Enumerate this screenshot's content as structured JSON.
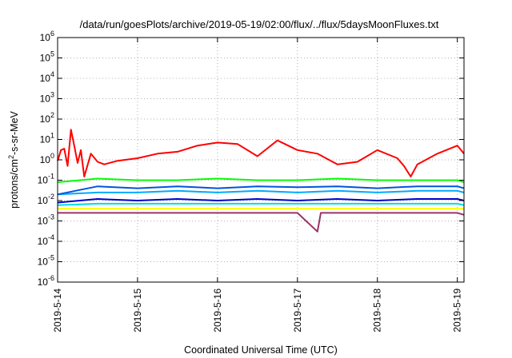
{
  "chart_data": {
    "type": "line",
    "title": "/data/run/goesPlots/archive/2019-05-19/02:00/flux/../flux/5daysMoonFluxes.txt",
    "xlabel": "Coordinated Universal Time (UTC)",
    "ylabel": {
      "prefix": "protons/cm",
      "sup": "2",
      "suffix": "-s-sr-MeV"
    },
    "yscale": "log",
    "ylim": [
      1e-06,
      1000000.0
    ],
    "y_ticks": [
      {
        "value": 1e-06,
        "base": "10",
        "exp": "-6"
      },
      {
        "value": 1e-05,
        "base": "10",
        "exp": "-5"
      },
      {
        "value": 0.0001,
        "base": "10",
        "exp": "-4"
      },
      {
        "value": 0.001,
        "base": "10",
        "exp": "-3"
      },
      {
        "value": 0.01,
        "base": "10",
        "exp": "-2"
      },
      {
        "value": 0.1,
        "base": "10",
        "exp": "-1"
      },
      {
        "value": 1,
        "base": "10",
        "exp": "0"
      },
      {
        "value": 10,
        "base": "10",
        "exp": "1"
      },
      {
        "value": 100,
        "base": "10",
        "exp": "2"
      },
      {
        "value": 1000,
        "base": "10",
        "exp": "3"
      },
      {
        "value": 10000,
        "base": "10",
        "exp": "4"
      },
      {
        "value": 100000,
        "base": "10",
        "exp": "5"
      },
      {
        "value": 1000000,
        "base": "10",
        "exp": "6"
      }
    ],
    "xlim": [
      "2019-05-14 00:00",
      "2019-05-19 02:00"
    ],
    "x_ticks": [
      {
        "value": "2019-05-14 00:00",
        "label": "2019-5-14"
      },
      {
        "value": "2019-05-15 00:00",
        "label": "2019-5-15"
      },
      {
        "value": "2019-05-16 00:00",
        "label": "2019-5-16"
      },
      {
        "value": "2019-05-17 00:00",
        "label": "2019-5-17"
      },
      {
        "value": "2019-05-18 00:00",
        "label": "2019-5-18"
      },
      {
        "value": "2019-05-19 00:00",
        "label": "2019-5-19"
      }
    ],
    "grid": true,
    "series": [
      {
        "color": "#ff0000",
        "points": [
          [
            "2019-05-14 00:00",
            0.9
          ],
          [
            "2019-05-14 01:00",
            3.0
          ],
          [
            "2019-05-14 02:00",
            3.5
          ],
          [
            "2019-05-14 03:00",
            0.5
          ],
          [
            "2019-05-14 04:00",
            30
          ],
          [
            "2019-05-14 05:00",
            5
          ],
          [
            "2019-05-14 06:00",
            0.7
          ],
          [
            "2019-05-14 07:00",
            3
          ],
          [
            "2019-05-14 08:00",
            0.15
          ],
          [
            "2019-05-14 10:00",
            2
          ],
          [
            "2019-05-14 12:00",
            0.8
          ],
          [
            "2019-05-14 14:00",
            0.6
          ],
          [
            "2019-05-14 18:00",
            0.9
          ],
          [
            "2019-05-15 00:00",
            1.2
          ],
          [
            "2019-05-15 06:00",
            2
          ],
          [
            "2019-05-15 12:00",
            2.5
          ],
          [
            "2019-05-15 18:00",
            5
          ],
          [
            "2019-05-16 00:00",
            7
          ],
          [
            "2019-05-16 06:00",
            6
          ],
          [
            "2019-05-16 12:00",
            1.5
          ],
          [
            "2019-05-16 18:00",
            9
          ],
          [
            "2019-05-17 00:00",
            3
          ],
          [
            "2019-05-17 06:00",
            2
          ],
          [
            "2019-05-17 12:00",
            0.6
          ],
          [
            "2019-05-17 18:00",
            0.8
          ],
          [
            "2019-05-18 00:00",
            3
          ],
          [
            "2019-05-18 06:00",
            1.2
          ],
          [
            "2019-05-18 08:00",
            0.5
          ],
          [
            "2019-05-18 10:00",
            0.15
          ],
          [
            "2019-05-18 12:00",
            0.6
          ],
          [
            "2019-05-18 18:00",
            2
          ],
          [
            "2019-05-19 00:00",
            5
          ],
          [
            "2019-05-19 02:00",
            2
          ]
        ]
      },
      {
        "color": "#00ff00",
        "points": [
          [
            "2019-05-14 00:00",
            0.08
          ],
          [
            "2019-05-14 12:00",
            0.12
          ],
          [
            "2019-05-15 00:00",
            0.1
          ],
          [
            "2019-05-15 12:00",
            0.1
          ],
          [
            "2019-05-16 00:00",
            0.12
          ],
          [
            "2019-05-16 12:00",
            0.1
          ],
          [
            "2019-05-17 00:00",
            0.1
          ],
          [
            "2019-05-17 12:00",
            0.12
          ],
          [
            "2019-05-18 00:00",
            0.1
          ],
          [
            "2019-05-18 12:00",
            0.1
          ],
          [
            "2019-05-19 00:00",
            0.1
          ],
          [
            "2019-05-19 02:00",
            0.08
          ]
        ]
      },
      {
        "color": "#0055dd",
        "points": [
          [
            "2019-05-14 00:00",
            0.02
          ],
          [
            "2019-05-14 12:00",
            0.05
          ],
          [
            "2019-05-15 00:00",
            0.04
          ],
          [
            "2019-05-15 12:00",
            0.05
          ],
          [
            "2019-05-16 00:00",
            0.04
          ],
          [
            "2019-05-16 12:00",
            0.05
          ],
          [
            "2019-05-17 00:00",
            0.045
          ],
          [
            "2019-05-17 12:00",
            0.05
          ],
          [
            "2019-05-18 00:00",
            0.04
          ],
          [
            "2019-05-18 12:00",
            0.05
          ],
          [
            "2019-05-19 00:00",
            0.05
          ],
          [
            "2019-05-19 02:00",
            0.04
          ]
        ]
      },
      {
        "color": "#00aaff",
        "points": [
          [
            "2019-05-14 00:00",
            0.02
          ],
          [
            "2019-05-14 12:00",
            0.025
          ],
          [
            "2019-05-15 00:00",
            0.025
          ],
          [
            "2019-05-15 12:00",
            0.03
          ],
          [
            "2019-05-16 00:00",
            0.025
          ],
          [
            "2019-05-16 12:00",
            0.03
          ],
          [
            "2019-05-17 00:00",
            0.025
          ],
          [
            "2019-05-17 12:00",
            0.03
          ],
          [
            "2019-05-18 00:00",
            0.025
          ],
          [
            "2019-05-18 12:00",
            0.03
          ],
          [
            "2019-05-19 00:00",
            0.03
          ],
          [
            "2019-05-19 02:00",
            0.025
          ]
        ]
      },
      {
        "color": "#0000cc",
        "points": [
          [
            "2019-05-14 00:00",
            0.008
          ],
          [
            "2019-05-14 12:00",
            0.012
          ],
          [
            "2019-05-15 00:00",
            0.01
          ],
          [
            "2019-05-15 12:00",
            0.012
          ],
          [
            "2019-05-16 00:00",
            0.01
          ],
          [
            "2019-05-16 12:00",
            0.012
          ],
          [
            "2019-05-17 00:00",
            0.01
          ],
          [
            "2019-05-17 12:00",
            0.012
          ],
          [
            "2019-05-18 00:00",
            0.01
          ],
          [
            "2019-05-18 12:00",
            0.012
          ],
          [
            "2019-05-19 00:00",
            0.012
          ],
          [
            "2019-05-19 02:00",
            0.01
          ]
        ]
      },
      {
        "color": "#00dddd",
        "points": [
          [
            "2019-05-14 00:00",
            0.006
          ],
          [
            "2019-05-14 12:00",
            0.007
          ],
          [
            "2019-05-15 00:00",
            0.007
          ],
          [
            "2019-05-15 12:00",
            0.007
          ],
          [
            "2019-05-16 00:00",
            0.007
          ],
          [
            "2019-05-16 12:00",
            0.007
          ],
          [
            "2019-05-17 00:00",
            0.007
          ],
          [
            "2019-05-17 12:00",
            0.007
          ],
          [
            "2019-05-18 00:00",
            0.007
          ],
          [
            "2019-05-18 12:00",
            0.007
          ],
          [
            "2019-05-19 00:00",
            0.007
          ],
          [
            "2019-05-19 02:00",
            0.006
          ]
        ]
      },
      {
        "color": "#ffff00",
        "points": [
          [
            "2019-05-14 00:00",
            0.004
          ],
          [
            "2019-05-14 12:00",
            0.004
          ],
          [
            "2019-05-15 00:00",
            0.004
          ],
          [
            "2019-05-15 12:00",
            0.004
          ],
          [
            "2019-05-16 00:00",
            0.004
          ],
          [
            "2019-05-16 12:00",
            0.004
          ],
          [
            "2019-05-17 00:00",
            0.004
          ],
          [
            "2019-05-17 12:00",
            0.004
          ],
          [
            "2019-05-18 00:00",
            0.004
          ],
          [
            "2019-05-18 12:00",
            0.004
          ],
          [
            "2019-05-19 00:00",
            0.004
          ],
          [
            "2019-05-19 02:00",
            0.004
          ]
        ]
      },
      {
        "color": "#993366",
        "points": [
          [
            "2019-05-14 00:00",
            0.0025
          ],
          [
            "2019-05-14 12:00",
            0.0025
          ],
          [
            "2019-05-15 00:00",
            0.0025
          ],
          [
            "2019-05-15 12:00",
            0.0025
          ],
          [
            "2019-05-16 00:00",
            0.0025
          ],
          [
            "2019-05-16 12:00",
            0.0025
          ],
          [
            "2019-05-17 00:00",
            0.0025
          ],
          [
            "2019-05-17 06:00",
            0.0003
          ],
          [
            "2019-05-17 07:00",
            0.0025
          ],
          [
            "2019-05-17 12:00",
            0.0025
          ],
          [
            "2019-05-18 00:00",
            0.0025
          ],
          [
            "2019-05-18 12:00",
            0.0025
          ],
          [
            "2019-05-19 00:00",
            0.0025
          ],
          [
            "2019-05-19 02:00",
            0.002
          ]
        ]
      }
    ]
  }
}
